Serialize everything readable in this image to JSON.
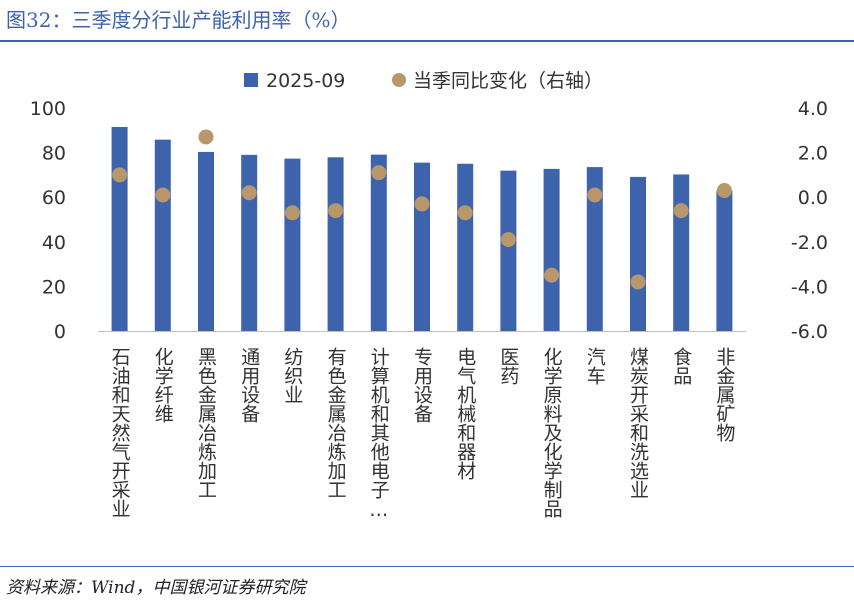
{
  "header": {
    "title": "图32：三季度分行业产能利用率（%）"
  },
  "footer": {
    "source": "资料来源：Wind，中国银河证券研究院"
  },
  "colors": {
    "bar": "#3e63ad",
    "dot": "#b8976b",
    "axis": "#bfbfbf",
    "title": "#3e63ad",
    "text": "#333333"
  },
  "chart_data": {
    "type": "bar",
    "title": "",
    "categories": [
      "石油和天然气开采业",
      "化学纤维",
      "黑色金属冶炼加工",
      "通用设备",
      "纺织业",
      "有色金属冶炼加工",
      "计算机和其他电子…",
      "专用设备",
      "电气机械和器材",
      "医药",
      "化学原料及化学制品",
      "汽车",
      "煤炭开采和洗选业",
      "食品",
      "非金属矿物"
    ],
    "series": [
      {
        "name": "2025-09",
        "kind": "bar",
        "axis": "left",
        "values": [
          91.5,
          85.8,
          80.3,
          79.0,
          77.3,
          77.9,
          79.1,
          75.5,
          75.0,
          71.9,
          72.7,
          73.5,
          69.1,
          70.2,
          63.0
        ]
      },
      {
        "name": "当季同比变化（右轴）",
        "kind": "dot",
        "axis": "right",
        "values": [
          1.0,
          0.1,
          2.7,
          0.2,
          -0.7,
          -0.6,
          1.1,
          -0.3,
          -0.7,
          -1.9,
          -3.5,
          0.1,
          -3.8,
          -0.6,
          0.3
        ]
      }
    ],
    "ylim": [
      0,
      100
    ],
    "yticks": [
      "0",
      "20",
      "40",
      "60",
      "80",
      "100"
    ],
    "y2lim": [
      -6,
      4
    ],
    "y2ticks": [
      "-6.0",
      "-4.0",
      "-2.0",
      "0.0",
      "2.0",
      "4.0"
    ],
    "legend": "top"
  }
}
